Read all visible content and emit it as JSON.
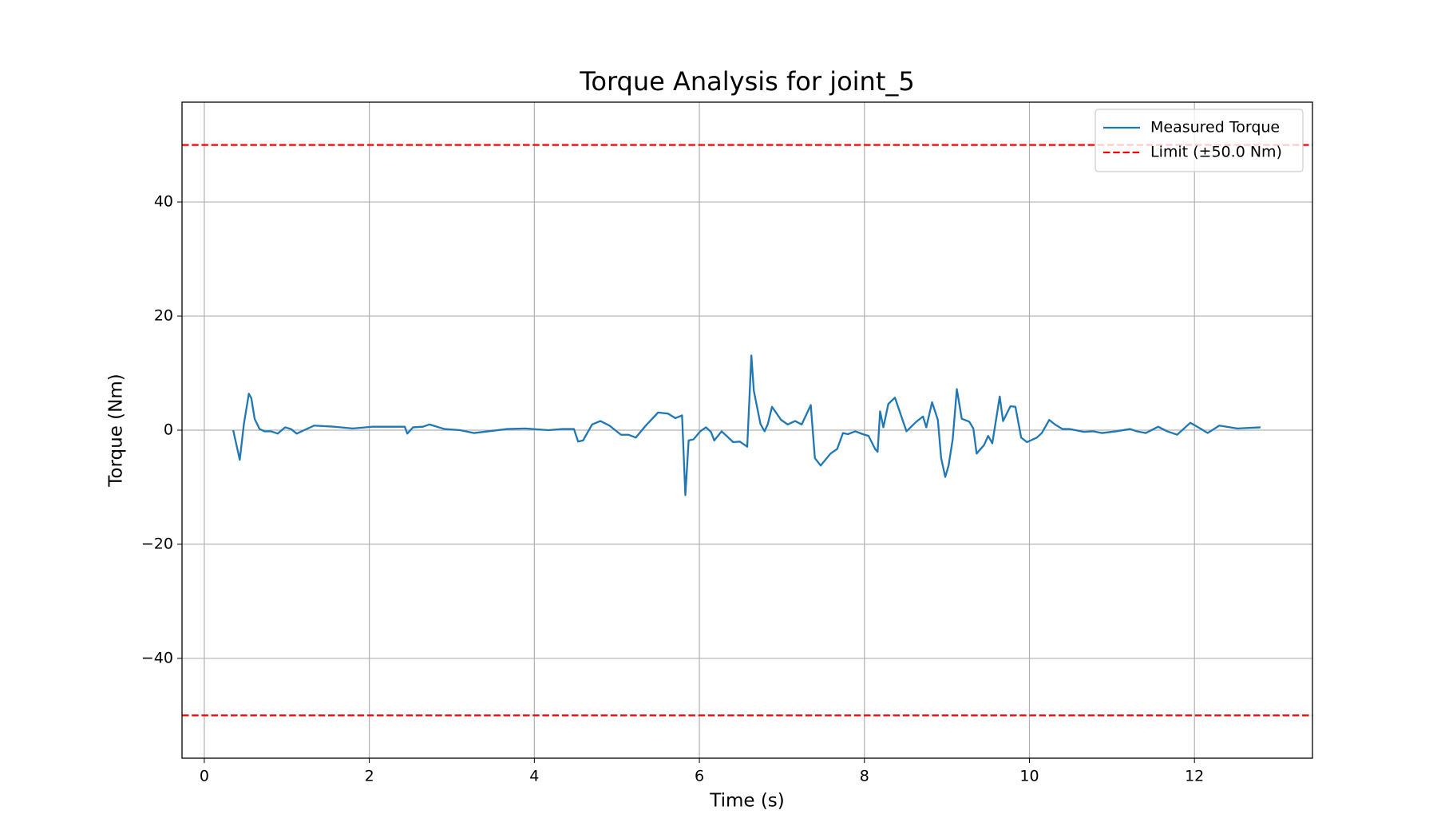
{
  "chart_data": {
    "type": "line",
    "title": "Torque Analysis for joint_5",
    "xlabel": "Time (s)",
    "ylabel": "Torque (Nm)",
    "x": [
      0.35,
      0.43,
      0.48,
      0.54,
      0.57,
      0.61,
      0.67,
      0.73,
      0.81,
      0.89,
      0.98,
      1.05,
      1.12,
      1.21,
      1.33,
      1.58,
      1.8,
      2.03,
      2.43,
      2.46,
      2.53,
      2.65,
      2.73,
      2.91,
      3.1,
      3.27,
      3.44,
      3.67,
      3.89,
      4.17,
      4.34,
      4.48,
      4.53,
      4.59,
      4.7,
      4.8,
      4.91,
      5.05,
      5.14,
      5.23,
      5.35,
      5.5,
      5.62,
      5.71,
      5.79,
      5.83,
      5.87,
      5.93,
      6.01,
      6.08,
      6.14,
      6.18,
      6.27,
      6.41,
      6.49,
      6.58,
      6.63,
      6.66,
      6.74,
      6.79,
      6.83,
      6.88,
      6.99,
      7.07,
      7.16,
      7.24,
      7.35,
      7.4,
      7.47,
      7.59,
      7.67,
      7.74,
      7.8,
      7.89,
      7.98,
      8.05,
      8.13,
      8.16,
      8.19,
      8.23,
      8.29,
      8.37,
      8.51,
      8.63,
      8.71,
      8.75,
      8.82,
      8.89,
      8.93,
      8.98,
      9.02,
      9.07,
      9.12,
      9.18,
      9.27,
      9.32,
      9.36,
      9.45,
      9.5,
      9.55,
      9.64,
      9.68,
      9.77,
      9.83,
      9.9,
      9.97,
      10.09,
      10.15,
      10.24,
      10.31,
      10.4,
      10.49,
      10.66,
      10.77,
      10.88,
      11.05,
      11.22,
      11.3,
      11.41,
      11.56,
      11.67,
      11.79,
      11.95,
      12.07,
      12.16,
      12.3,
      12.52,
      12.8
    ],
    "series": [
      {
        "name": "Measured Torque",
        "color": "#1f77b4",
        "values": [
          0,
          -5.2,
          1.1,
          6.4,
          5.6,
          2.0,
          0.2,
          -0.2,
          -0.2,
          -0.6,
          0.5,
          0.2,
          -0.6,
          0,
          0.8,
          0.6,
          0.3,
          0.6,
          0.6,
          -0.6,
          0.5,
          0.6,
          1.0,
          0.2,
          0,
          -0.5,
          -0.2,
          0.2,
          0.3,
          0,
          0.2,
          0.2,
          -2.0,
          -1.8,
          1.0,
          1.6,
          0.8,
          -0.8,
          -0.8,
          -1.3,
          0.8,
          3.1,
          2.9,
          2.1,
          2.6,
          -11.4,
          -1.8,
          -1.6,
          -0.2,
          0.5,
          -0.3,
          -1.8,
          -0.2,
          -2.1,
          -2.0,
          -2.9,
          13.1,
          6.9,
          1.1,
          -0.2,
          1.1,
          4.1,
          1.8,
          1.0,
          1.6,
          1.0,
          4.4,
          -4.9,
          -6.2,
          -4.1,
          -3.3,
          -0.5,
          -0.7,
          -0.2,
          -0.7,
          -1.0,
          -3.3,
          -3.8,
          3.3,
          0.5,
          4.6,
          5.7,
          -0.2,
          1.5,
          2.4,
          0.5,
          4.9,
          1.8,
          -4.9,
          -8.2,
          -6.2,
          -1.6,
          7.2,
          2.0,
          1.5,
          0.3,
          -4.1,
          -2.6,
          -1.0,
          -2.3,
          5.9,
          1.6,
          4.2,
          4.1,
          -1.3,
          -2.1,
          -1.3,
          -0.5,
          1.8,
          1.0,
          0.2,
          0.2,
          -0.3,
          -0.2,
          -0.5,
          -0.2,
          0.2,
          -0.2,
          -0.5,
          0.6,
          -0.2,
          -0.8,
          1.3,
          0.3,
          -0.5,
          0.8,
          0.3,
          0.5
        ]
      }
    ],
    "limits": {
      "name": "Limit (±50.0 Nm)",
      "color": "#ff0000",
      "values": [
        50,
        -50
      ]
    },
    "xlim": [
      -0.27,
      13.43
    ],
    "ylim": [
      -57.5,
      57.5
    ],
    "xticks": [
      0,
      2,
      4,
      6,
      8,
      10,
      12
    ],
    "yticks": [
      {
        "value": -40,
        "label": "−40"
      },
      {
        "value": -20,
        "label": "−20"
      },
      0,
      20,
      40
    ],
    "grid": true,
    "legend": "upper right"
  }
}
